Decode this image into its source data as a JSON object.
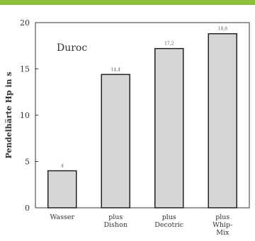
{
  "header": {
    "accent_color": "#8fbf3a"
  },
  "chart_data": {
    "type": "bar",
    "title": "Duroc",
    "ylabel": "Pendelhärte Hp in s",
    "xlabel": "",
    "ylim": [
      0,
      20
    ],
    "yticks": [
      "0",
      "5",
      "10",
      "15",
      "20"
    ],
    "categories": [
      [
        "Wasser"
      ],
      [
        "plus",
        "Dishon"
      ],
      [
        "plus",
        "Decotric"
      ],
      [
        "plus",
        "Whip-",
        "Mix"
      ]
    ],
    "values": [
      4,
      14.4,
      17.2,
      18.8
    ],
    "value_labels": [
      "4",
      "14,4",
      "17,2",
      "18,8"
    ],
    "bar_color": "#d6d6d6",
    "grid": false,
    "legend": "none"
  }
}
